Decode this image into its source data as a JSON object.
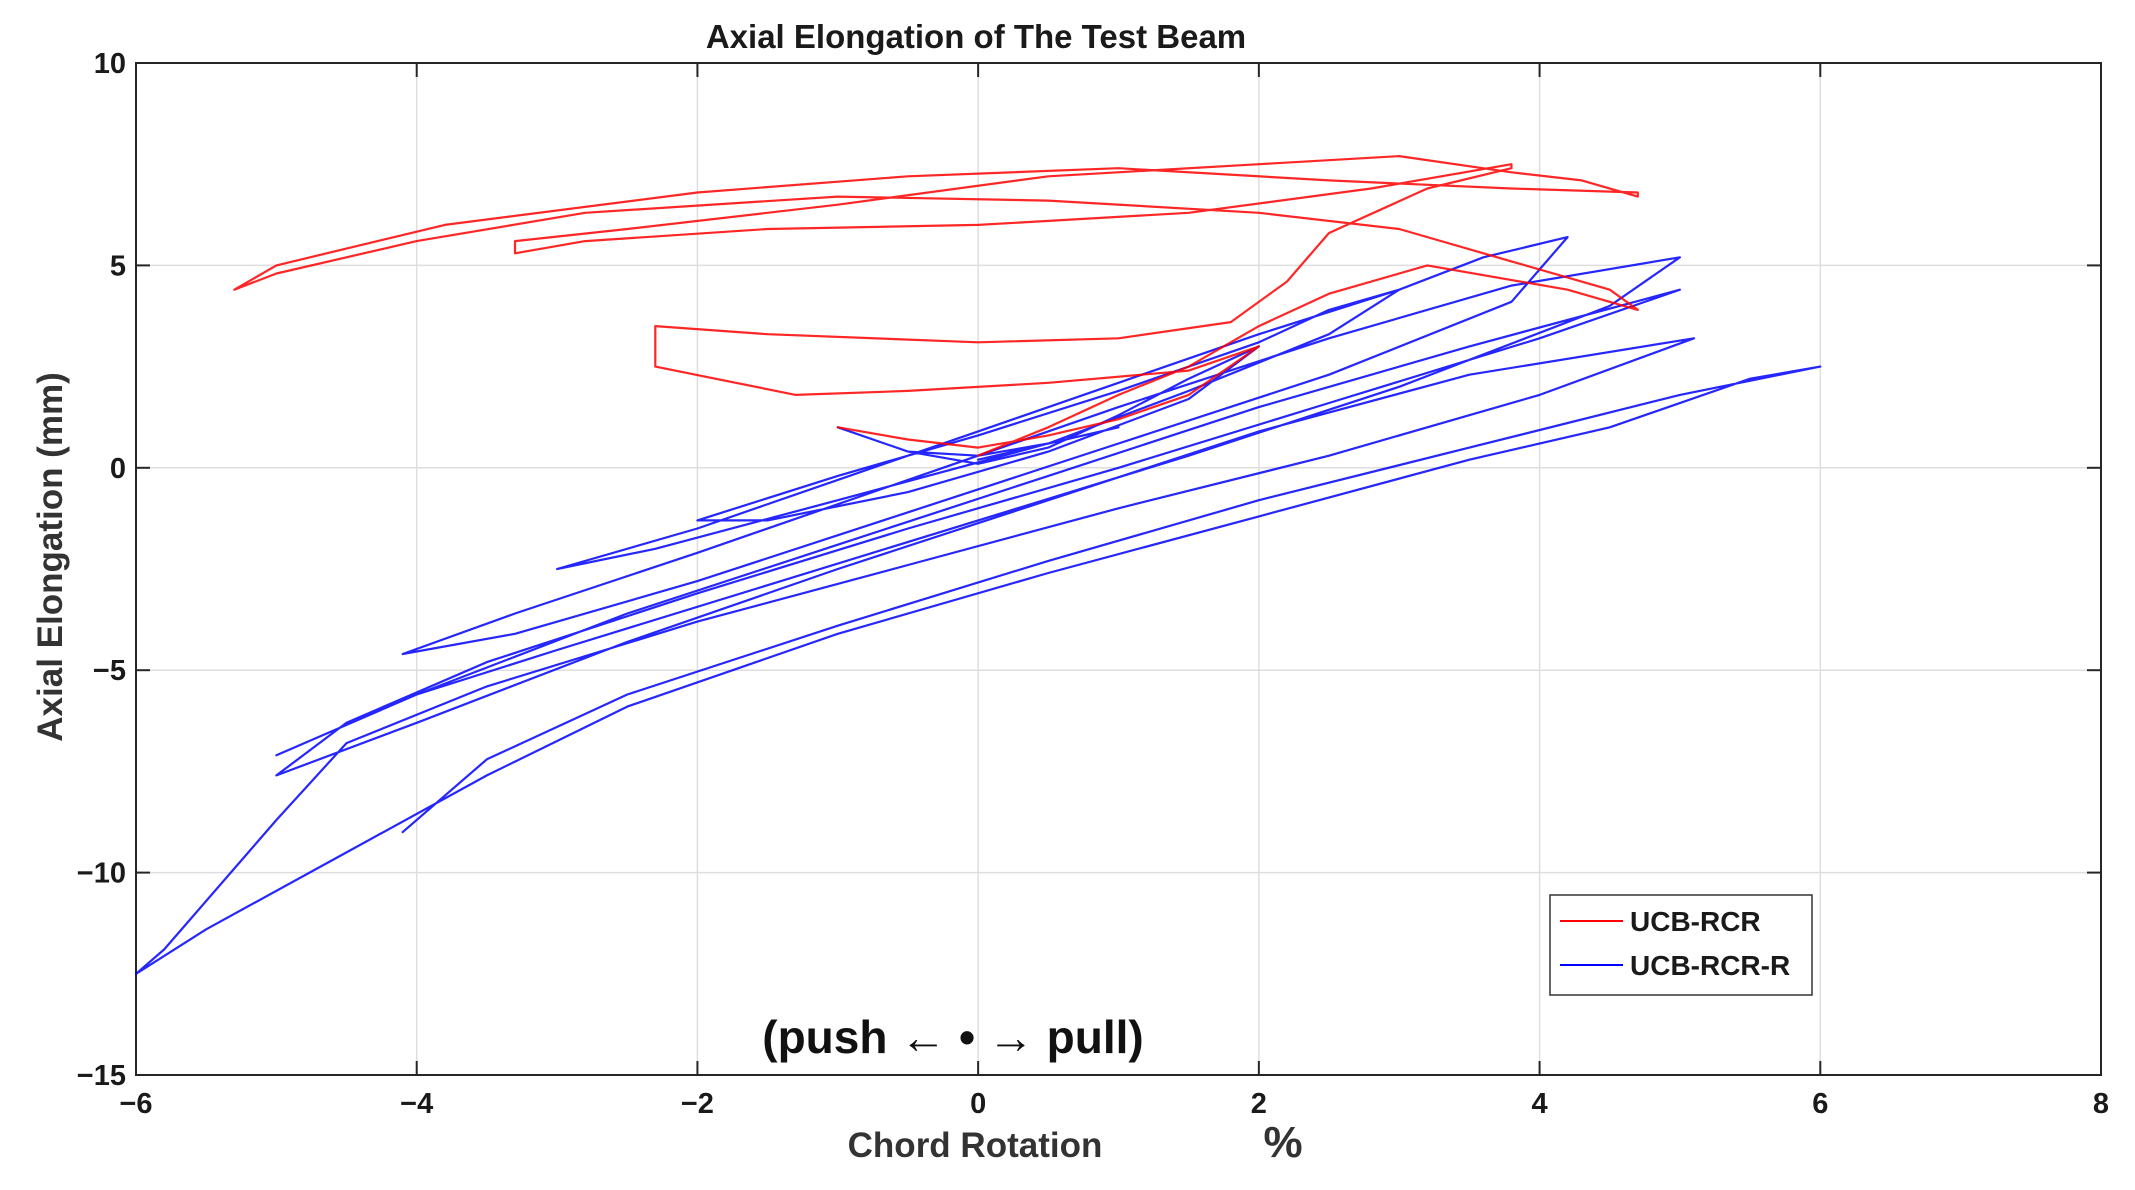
{
  "chart_data": {
    "type": "line",
    "title": "Axial Elongation of The Test Beam",
    "xlabel": "Chord Rotation",
    "xlabel_unit": "%",
    "ylabel": "Axial Elongation (mm)",
    "xlim": [
      -6,
      8
    ],
    "ylim": [
      -15,
      10
    ],
    "xticks": [
      -6,
      -4,
      -2,
      0,
      2,
      4,
      6,
      8
    ],
    "yticks": [
      10,
      5,
      0,
      -5,
      -10,
      -15
    ],
    "xtick_labels": [
      "−6",
      "−4",
      "−2",
      "0",
      "2",
      "4",
      "6",
      "8"
    ],
    "ytick_labels": [
      "10",
      "5",
      "0",
      "−5",
      "−10",
      "−15"
    ],
    "grid": true,
    "legend_position": "bottom-right",
    "annotation": "(push ← • → pull)",
    "series": [
      {
        "name": "UCB-RCR",
        "color": "#ff0000",
        "x": [
          -1.0,
          -0.5,
          0.0,
          0.5,
          1.0,
          1.5,
          2.0,
          1.5,
          0.5,
          -0.5,
          -1.3,
          -2.3,
          -2.3,
          -1.5,
          0.0,
          1.0,
          1.8,
          2.2,
          2.5,
          3.2,
          3.8,
          3.8,
          2.8,
          1.5,
          0.0,
          -1.5,
          -2.8,
          -3.3,
          -3.3,
          -2.5,
          -1.0,
          0.5,
          2.0,
          3.0,
          3.8,
          4.3,
          4.7,
          4.7,
          3.8,
          2.5,
          1.0,
          -0.5,
          -2.0,
          -3.8,
          -5.0,
          -5.3,
          -5.0,
          -4.0,
          -2.8,
          -1.0,
          0.5,
          2.0,
          3.0,
          3.8,
          4.5,
          4.7,
          4.2,
          3.2,
          2.5,
          2.0,
          1.5,
          1.0,
          0.5,
          0.0
        ],
        "y": [
          1.0,
          0.7,
          0.5,
          0.8,
          1.2,
          1.8,
          3.0,
          2.4,
          2.1,
          1.9,
          1.8,
          2.5,
          3.5,
          3.3,
          3.1,
          3.2,
          3.6,
          4.6,
          5.8,
          6.9,
          7.4,
          7.5,
          6.9,
          6.3,
          6.0,
          5.9,
          5.6,
          5.3,
          5.6,
          5.9,
          6.5,
          7.2,
          7.5,
          7.7,
          7.3,
          7.1,
          6.7,
          6.8,
          6.9,
          7.1,
          7.4,
          7.2,
          6.8,
          6.0,
          5.0,
          4.4,
          4.8,
          5.6,
          6.3,
          6.7,
          6.6,
          6.3,
          5.9,
          5.1,
          4.4,
          3.9,
          4.4,
          5.0,
          4.3,
          3.5,
          2.5,
          1.8,
          1.0,
          0.3
        ]
      },
      {
        "name": "UCB-RCR-R",
        "color": "#0000ff",
        "x": [
          0.0,
          0.5,
          1.0,
          0.5,
          0.0,
          -0.5,
          -1.0,
          -0.5,
          0.0,
          0.5,
          1.0,
          1.5,
          2.0,
          1.5,
          0.5,
          -0.5,
          -1.5,
          -2.0,
          -1.0,
          0.0,
          1.0,
          2.0,
          2.5,
          3.0,
          2.5,
          1.5,
          0.5,
          -1.0,
          -2.3,
          -3.0,
          -2.0,
          -1.0,
          0.0,
          1.0,
          2.0,
          3.0,
          3.6,
          4.2,
          3.8,
          2.5,
          1.0,
          -0.5,
          -2.0,
          -3.3,
          -4.1,
          -3.3,
          -2.0,
          -0.5,
          1.0,
          2.5,
          3.8,
          5.0,
          4.5,
          3.0,
          1.5,
          0.0,
          -1.5,
          -3.0,
          -4.0,
          -5.0,
          -4.0,
          -2.5,
          -1.0,
          0.5,
          2.0,
          3.5,
          5.0,
          4.0,
          2.5,
          1.0,
          -0.5,
          -2.0,
          -3.5,
          -4.5,
          -5.0,
          -4.0,
          -2.5,
          -1.0,
          0.5,
          2.0,
          3.5,
          5.1,
          4.0,
          2.5,
          1.0,
          -0.5,
          -2.0,
          -3.5,
          -4.5,
          -5.0,
          -5.8,
          -6.0,
          -5.5,
          -4.5,
          -3.5,
          -2.5,
          -1.0,
          0.5,
          2.0,
          3.5,
          4.5,
          5.5,
          6.0,
          5.0,
          3.5,
          2.0,
          0.5,
          -1.0,
          -2.5,
          -3.5,
          -4.1
        ],
        "y": [
          0.2,
          0.6,
          1.0,
          0.6,
          0.3,
          0.4,
          1.0,
          0.4,
          0.1,
          0.5,
          1.3,
          2.2,
          3.0,
          1.7,
          0.4,
          -0.6,
          -1.3,
          -1.3,
          -0.2,
          0.8,
          1.9,
          3.1,
          3.9,
          4.4,
          3.3,
          1.9,
          0.6,
          -0.8,
          -2.0,
          -2.5,
          -1.5,
          -0.3,
          0.9,
          2.1,
          3.3,
          4.4,
          5.2,
          5.7,
          4.1,
          2.3,
          0.6,
          -1.1,
          -2.8,
          -4.1,
          -4.6,
          -3.6,
          -2.1,
          -0.3,
          1.5,
          3.2,
          4.5,
          5.2,
          4.0,
          2.0,
          0.3,
          -1.3,
          -2.9,
          -4.5,
          -5.6,
          -7.1,
          -5.6,
          -3.6,
          -1.9,
          -0.2,
          1.5,
          3.0,
          4.4,
          3.2,
          1.6,
          0.0,
          -1.5,
          -3.1,
          -4.8,
          -6.3,
          -7.6,
          -6.3,
          -4.3,
          -2.5,
          -0.8,
          0.9,
          2.3,
          3.2,
          1.8,
          0.3,
          -1.0,
          -2.4,
          -3.8,
          -5.4,
          -6.8,
          -8.7,
          -11.9,
          -12.5,
          -11.4,
          -9.5,
          -7.6,
          -5.9,
          -4.1,
          -2.6,
          -1.2,
          0.2,
          1.0,
          2.2,
          2.5,
          1.8,
          0.5,
          -0.8,
          -2.3,
          -3.9,
          -5.6,
          -7.2,
          -9.0
        ]
      }
    ]
  }
}
